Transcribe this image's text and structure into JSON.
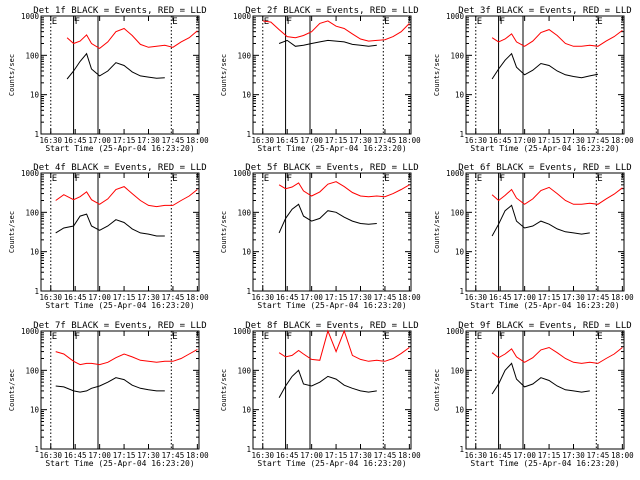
{
  "chart_data": [
    {
      "type": "line",
      "title": "Det 1f BLACK = Events, RED = LLD",
      "xlabel": "Start Time (25-Apr-04 16:23:20)",
      "ylabel": "Counts/sec",
      "yscale": "log",
      "ylim": [
        1,
        1000
      ],
      "x_ticks": [
        "16:30",
        "16:45",
        "17:00",
        "17:15",
        "17:30",
        "17:45",
        "18:00"
      ],
      "y_ticks": [
        "1",
        "10",
        "100",
        "1000"
      ],
      "markers": [
        {
          "label": "E",
          "time": "16:30"
        },
        {
          "label": "F",
          "time": "16:44"
        },
        {
          "label": "",
          "time": "16:59"
        },
        {
          "label": "E",
          "time": "17:44"
        }
      ],
      "x": [
        "16:35",
        "16:40",
        "16:44",
        "16:48",
        "16:52",
        "16:55",
        "17:00",
        "17:05",
        "17:10",
        "17:15",
        "17:20",
        "17:25",
        "17:30",
        "17:35",
        "17:40",
        "17:45",
        "17:50",
        "17:55",
        "18:00"
      ],
      "series": [
        {
          "color": "#ff0000",
          "values": [
            null,
            280,
            200,
            230,
            330,
            200,
            150,
            220,
            400,
            480,
            320,
            190,
            160,
            170,
            180,
            160,
            220,
            280,
            420
          ]
        },
        {
          "color": "#000000",
          "values": [
            null,
            25,
            40,
            70,
            110,
            45,
            30,
            40,
            65,
            55,
            38,
            30,
            28,
            26,
            27,
            null,
            null,
            null,
            null
          ]
        }
      ]
    },
    {
      "type": "line",
      "title": "Det 2f BLACK = Events, RED = LLD",
      "xlabel": "Start Time (25-Apr-04 16:23:20)",
      "ylabel": "Counts/sec",
      "yscale": "log",
      "ylim": [
        1,
        1000
      ],
      "x_ticks": [
        "16:30",
        "16:45",
        "17:00",
        "17:15",
        "17:30",
        "17:45",
        "18:00"
      ],
      "y_ticks": [
        "1",
        "10",
        "100",
        "1000"
      ],
      "markers": [
        {
          "label": "E",
          "time": "16:30"
        },
        {
          "label": "F",
          "time": "16:44"
        },
        {
          "label": "",
          "time": "16:59"
        },
        {
          "label": "E",
          "time": "17:44"
        }
      ],
      "x": [
        "16:30",
        "16:35",
        "16:40",
        "16:45",
        "16:50",
        "16:55",
        "17:00",
        "17:05",
        "17:10",
        "17:15",
        "17:20",
        "17:25",
        "17:30",
        "17:35",
        "17:40",
        "17:45",
        "17:50",
        "17:55",
        "18:00"
      ],
      "series": [
        {
          "color": "#ff0000",
          "values": [
            750,
            700,
            450,
            300,
            280,
            320,
            400,
            650,
            750,
            550,
            480,
            350,
            260,
            230,
            240,
            250,
            300,
            400,
            650
          ]
        },
        {
          "color": "#000000",
          "values": [
            null,
            null,
            200,
            240,
            170,
            180,
            200,
            220,
            240,
            230,
            220,
            190,
            180,
            170,
            180,
            null,
            null,
            null,
            null
          ]
        }
      ]
    },
    {
      "type": "line",
      "title": "Det 3f BLACK = Events, RED = LLD",
      "xlabel": "Start Time (25-Apr-04 16:23:20)",
      "ylabel": "Counts/sec",
      "yscale": "log",
      "ylim": [
        1,
        1000
      ],
      "x_ticks": [
        "16:30",
        "16:45",
        "17:00",
        "17:15",
        "17:30",
        "17:45",
        "18:00"
      ],
      "y_ticks": [
        "1",
        "10",
        "100",
        "1000"
      ],
      "markers": [
        {
          "label": "E",
          "time": "16:30"
        },
        {
          "label": "F",
          "time": "16:44"
        },
        {
          "label": "",
          "time": "16:59"
        },
        {
          "label": "E",
          "time": "17:44"
        }
      ],
      "x": [
        "16:35",
        "16:40",
        "16:44",
        "16:48",
        "16:52",
        "16:55",
        "17:00",
        "17:05",
        "17:10",
        "17:15",
        "17:20",
        "17:25",
        "17:30",
        "17:35",
        "17:40",
        "17:45",
        "17:50",
        "17:55",
        "18:00"
      ],
      "series": [
        {
          "color": "#ff0000",
          "values": [
            null,
            280,
            220,
            260,
            350,
            220,
            170,
            230,
            380,
            450,
            320,
            200,
            170,
            170,
            180,
            170,
            230,
            300,
            430
          ]
        },
        {
          "color": "#000000",
          "values": [
            null,
            25,
            45,
            75,
            110,
            50,
            32,
            42,
            62,
            55,
            40,
            32,
            29,
            27,
            30,
            33,
            null,
            null,
            null
          ]
        }
      ]
    },
    {
      "type": "line",
      "title": "Det 4f BLACK = Events, RED = LLD",
      "xlabel": "Start Time (25-Apr-04 16:23:20)",
      "ylabel": "Counts/sec",
      "yscale": "log",
      "ylim": [
        1,
        1000
      ],
      "x_ticks": [
        "16:30",
        "16:45",
        "17:00",
        "17:15",
        "17:30",
        "17:45",
        "18:00"
      ],
      "y_ticks": [
        "1",
        "10",
        "100",
        "1000"
      ],
      "markers": [
        {
          "label": "E",
          "time": "16:30"
        },
        {
          "label": "F",
          "time": "16:44"
        },
        {
          "label": "",
          "time": "16:59"
        },
        {
          "label": "E",
          "time": "17:44"
        }
      ],
      "x": [
        "16:33",
        "16:38",
        "16:44",
        "16:48",
        "16:52",
        "16:55",
        "17:00",
        "17:05",
        "17:10",
        "17:15",
        "17:20",
        "17:25",
        "17:30",
        "17:35",
        "17:40",
        "17:45",
        "17:50",
        "17:55",
        "18:00"
      ],
      "series": [
        {
          "color": "#ff0000",
          "values": [
            200,
            280,
            210,
            250,
            330,
            210,
            160,
            220,
            380,
            450,
            300,
            200,
            150,
            140,
            150,
            150,
            200,
            260,
            380
          ]
        },
        {
          "color": "#000000",
          "values": [
            30,
            40,
            45,
            80,
            90,
            45,
            35,
            45,
            65,
            55,
            38,
            30,
            28,
            25,
            25,
            null,
            null,
            null,
            null
          ]
        }
      ]
    },
    {
      "type": "line",
      "title": "Det 5f BLACK = Events, RED = LLD",
      "xlabel": "Start Time (25-Apr-04 16:23:20)",
      "ylabel": "Counts/sec",
      "yscale": "log",
      "ylim": [
        1,
        1000
      ],
      "x_ticks": [
        "16:30",
        "16:45",
        "17:00",
        "17:15",
        "17:30",
        "17:45",
        "18:00"
      ],
      "y_ticks": [
        "1",
        "10",
        "100",
        "1000"
      ],
      "markers": [
        {
          "label": "E",
          "time": "16:30"
        },
        {
          "label": "F",
          "time": "16:44"
        },
        {
          "label": "",
          "time": "16:59"
        },
        {
          "label": "E",
          "time": "17:44"
        }
      ],
      "x": [
        "16:35",
        "16:40",
        "16:44",
        "16:48",
        "16:52",
        "16:55",
        "17:00",
        "17:05",
        "17:10",
        "17:15",
        "17:20",
        "17:25",
        "17:30",
        "17:35",
        "17:40",
        "17:45",
        "17:50",
        "17:55",
        "18:00"
      ],
      "series": [
        {
          "color": "#ff0000",
          "values": [
            null,
            500,
            400,
            440,
            560,
            350,
            260,
            330,
            520,
            600,
            450,
            320,
            260,
            250,
            260,
            250,
            300,
            380,
            500
          ]
        },
        {
          "color": "#000000",
          "values": [
            null,
            30,
            70,
            120,
            160,
            80,
            60,
            70,
            110,
            100,
            75,
            60,
            52,
            50,
            52,
            null,
            null,
            null,
            null
          ]
        }
      ]
    },
    {
      "type": "line",
      "title": "Det 6f BLACK = Events, RED = LLD",
      "xlabel": "Start Time (25-Apr-04 16:23:20)",
      "ylabel": "Counts/sec",
      "yscale": "log",
      "ylim": [
        1,
        1000
      ],
      "x_ticks": [
        "16:30",
        "16:45",
        "17:00",
        "17:15",
        "17:30",
        "17:45",
        "18:00"
      ],
      "y_ticks": [
        "1",
        "10",
        "100",
        "1000"
      ],
      "markers": [
        {
          "label": "E",
          "time": "16:30"
        },
        {
          "label": "F",
          "time": "16:44"
        },
        {
          "label": "",
          "time": "16:59"
        },
        {
          "label": "E",
          "time": "17:44"
        }
      ],
      "x": [
        "16:35",
        "16:40",
        "16:44",
        "16:48",
        "16:52",
        "16:55",
        "17:00",
        "17:05",
        "17:10",
        "17:15",
        "17:20",
        "17:25",
        "17:30",
        "17:35",
        "17:40",
        "17:45",
        "17:50",
        "17:55",
        "18:00"
      ],
      "series": [
        {
          "color": "#ff0000",
          "values": [
            null,
            280,
            200,
            270,
            380,
            230,
            160,
            220,
            360,
            430,
            300,
            200,
            160,
            160,
            170,
            160,
            220,
            290,
            420
          ]
        },
        {
          "color": "#000000",
          "values": [
            null,
            25,
            50,
            110,
            150,
            60,
            40,
            45,
            60,
            50,
            38,
            32,
            30,
            28,
            30,
            null,
            null,
            null,
            null
          ]
        }
      ]
    },
    {
      "type": "line",
      "title": "Det 7f BLACK = Events, RED = LLD",
      "xlabel": "Start Time (25-Apr-04 16:23:20)",
      "ylabel": "Counts/sec",
      "yscale": "log",
      "ylim": [
        1,
        1000
      ],
      "x_ticks": [
        "16:30",
        "16:45",
        "17:00",
        "17:15",
        "17:30",
        "17:45",
        "18:00"
      ],
      "y_ticks": [
        "1",
        "10",
        "100",
        "1000"
      ],
      "markers": [
        {
          "label": "E",
          "time": "16:30"
        },
        {
          "label": "F",
          "time": "16:44"
        },
        {
          "label": "",
          "time": "16:59"
        },
        {
          "label": "E",
          "time": "17:44"
        }
      ],
      "x": [
        "16:33",
        "16:38",
        "16:44",
        "16:48",
        "16:52",
        "16:55",
        "17:00",
        "17:05",
        "17:10",
        "17:15",
        "17:20",
        "17:25",
        "17:30",
        "17:35",
        "17:40",
        "17:45",
        "17:50",
        "17:55",
        "18:00"
      ],
      "series": [
        {
          "color": "#ff0000",
          "values": [
            300,
            260,
            170,
            140,
            150,
            150,
            140,
            160,
            210,
            260,
            220,
            180,
            170,
            160,
            170,
            170,
            200,
            260,
            340
          ]
        },
        {
          "color": "#000000",
          "values": [
            40,
            38,
            30,
            28,
            30,
            35,
            40,
            50,
            65,
            58,
            42,
            35,
            32,
            30,
            30,
            null,
            null,
            null,
            null
          ]
        }
      ]
    },
    {
      "type": "line",
      "title": "Det 8f BLACK = Events, RED = LLD",
      "xlabel": "Start Time (25-Apr-04 16:23:20)",
      "ylabel": "Counts/sec",
      "yscale": "log",
      "ylim": [
        1,
        1000
      ],
      "x_ticks": [
        "16:30",
        "16:45",
        "17:00",
        "17:15",
        "17:30",
        "17:45",
        "18:00"
      ],
      "y_ticks": [
        "1",
        "10",
        "100",
        "1000"
      ],
      "markers": [
        {
          "label": "E",
          "time": "16:30"
        },
        {
          "label": "F",
          "time": "16:44"
        },
        {
          "label": "",
          "time": "16:59"
        },
        {
          "label": "E",
          "time": "17:44"
        }
      ],
      "x": [
        "16:35",
        "16:40",
        "16:44",
        "16:48",
        "16:52",
        "16:55",
        "17:00",
        "17:05",
        "17:10",
        "17:15",
        "17:20",
        "17:25",
        "17:30",
        "17:35",
        "17:40",
        "17:45",
        "17:50",
        "17:55",
        "18:00"
      ],
      "series": [
        {
          "color": "#ff0000",
          "values": [
            null,
            280,
            220,
            240,
            320,
            260,
            190,
            180,
            1000,
            300,
            1000,
            240,
            190,
            170,
            180,
            170,
            200,
            270,
            380
          ]
        },
        {
          "color": "#000000",
          "values": [
            null,
            20,
            40,
            70,
            100,
            45,
            40,
            50,
            70,
            60,
            42,
            35,
            30,
            28,
            30,
            null,
            null,
            null,
            null
          ]
        }
      ]
    },
    {
      "type": "line",
      "title": "Det 9f BLACK = Events, RED = LLD",
      "xlabel": "Start Time (25-Apr-04 16:23:20)",
      "ylabel": "Counts/sec",
      "yscale": "log",
      "ylim": [
        1,
        1000
      ],
      "x_ticks": [
        "16:30",
        "16:45",
        "17:00",
        "17:15",
        "17:30",
        "17:45",
        "18:00"
      ],
      "y_ticks": [
        "1",
        "10",
        "100",
        "1000"
      ],
      "markers": [
        {
          "label": "E",
          "time": "16:30"
        },
        {
          "label": "F",
          "time": "16:44"
        },
        {
          "label": "",
          "time": "16:59"
        },
        {
          "label": "E",
          "time": "17:44"
        }
      ],
      "x": [
        "16:35",
        "16:40",
        "16:44",
        "16:48",
        "16:52",
        "16:55",
        "17:00",
        "17:05",
        "17:10",
        "17:15",
        "17:20",
        "17:25",
        "17:30",
        "17:35",
        "17:40",
        "17:45",
        "17:50",
        "17:55",
        "18:00"
      ],
      "series": [
        {
          "color": "#ff0000",
          "values": [
            null,
            280,
            210,
            260,
            350,
            220,
            160,
            210,
            330,
            380,
            280,
            200,
            160,
            150,
            160,
            150,
            200,
            260,
            380
          ]
        },
        {
          "color": "#000000",
          "values": [
            null,
            25,
            45,
            100,
            150,
            60,
            38,
            45,
            65,
            55,
            40,
            32,
            30,
            28,
            30,
            null,
            null,
            null,
            null
          ]
        }
      ]
    }
  ]
}
